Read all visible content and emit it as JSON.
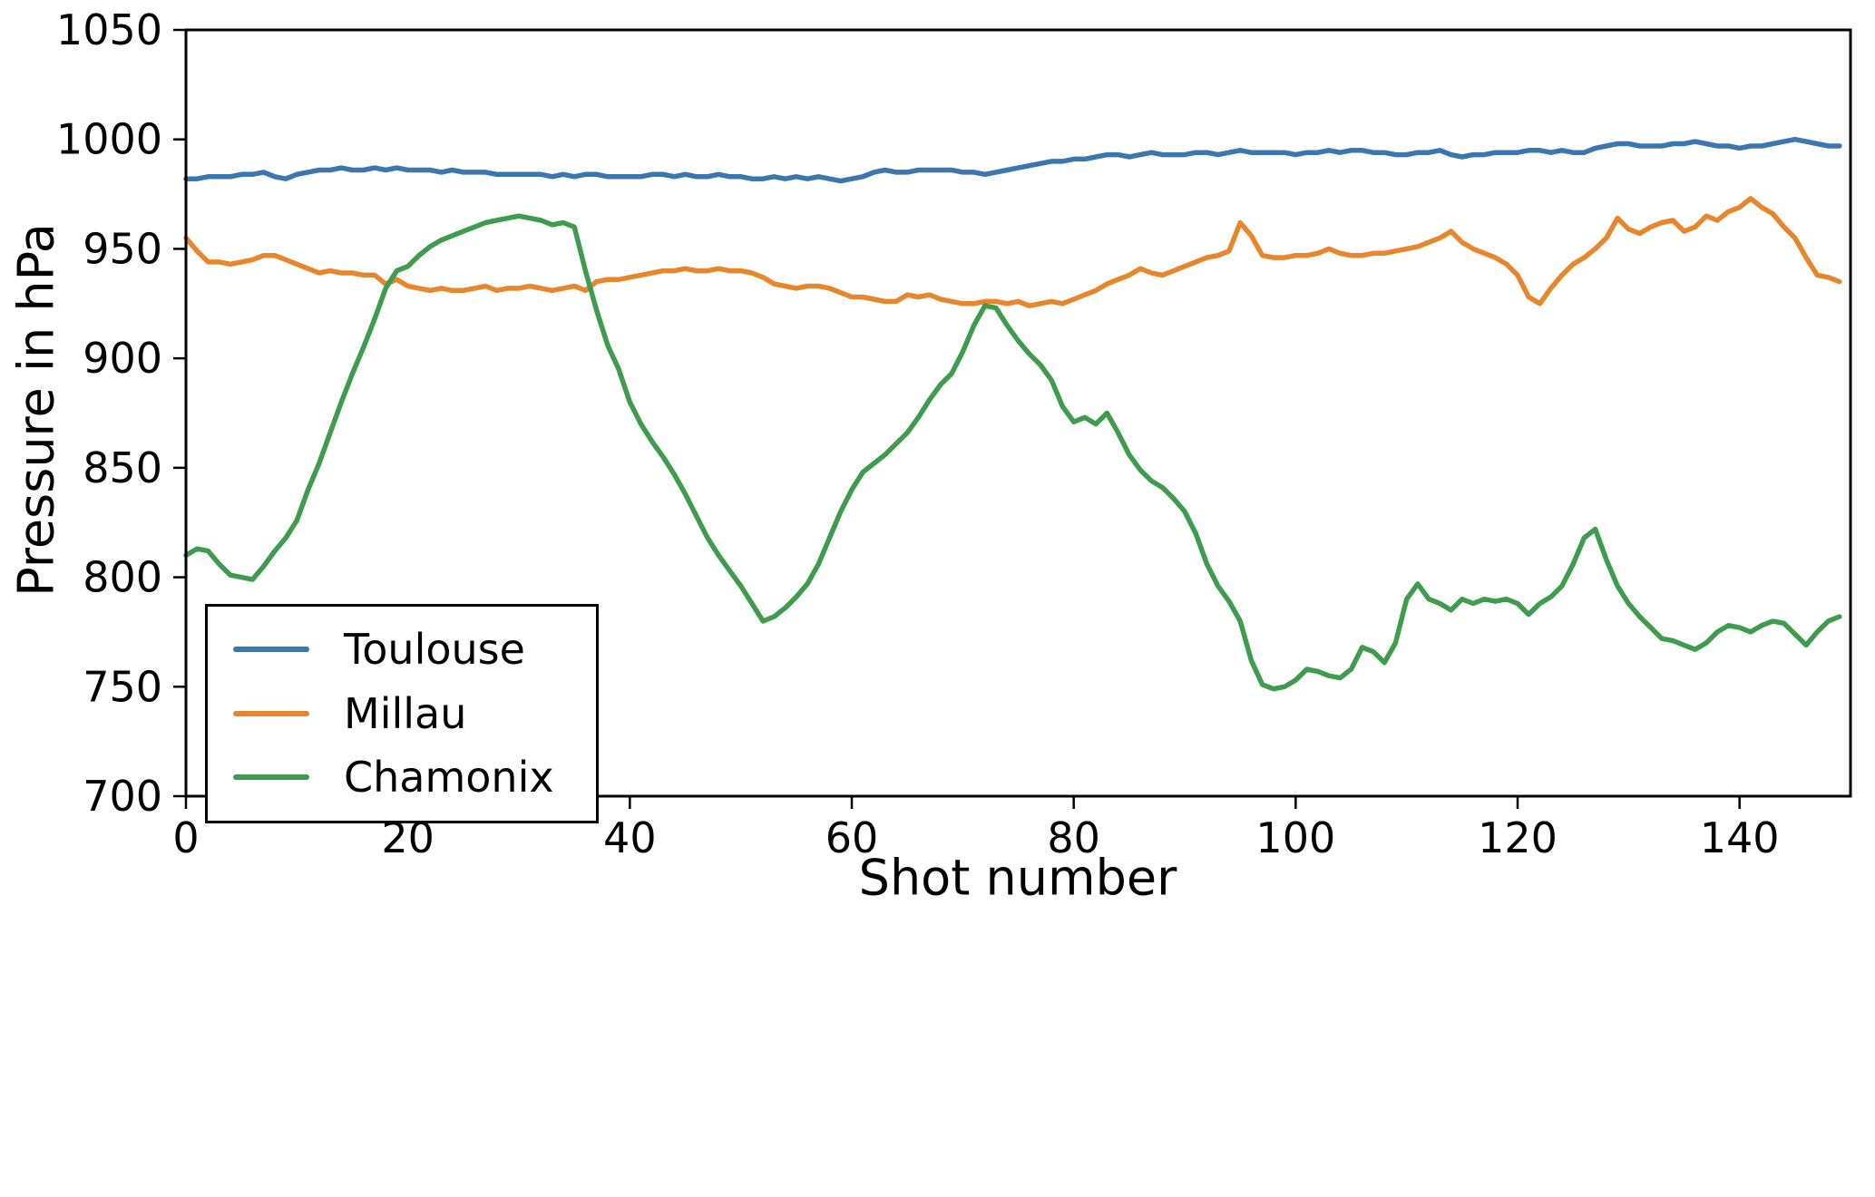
{
  "figure": {
    "background": "#ffffff",
    "axis_color": "#000000",
    "tick_label_color": "#000000"
  },
  "chart_data": {
    "type": "line",
    "title": "",
    "xlabel": "Shot number",
    "ylabel": "Pressure in hPa",
    "xlim": [
      0,
      150
    ],
    "ylim": [
      700,
      1050
    ],
    "xticks": [
      0,
      20,
      40,
      60,
      80,
      100,
      120,
      140
    ],
    "yticks": [
      700,
      750,
      800,
      850,
      900,
      950,
      1000,
      1050
    ],
    "grid": false,
    "legend_position": "lower left",
    "x_start": 0,
    "x_step": 1,
    "series": [
      {
        "name": "Toulouse",
        "color": "#3a76b0",
        "values": [
          982,
          982,
          983,
          983,
          983,
          984,
          984,
          985,
          983,
          982,
          984,
          985,
          986,
          986,
          987,
          986,
          986,
          987,
          986,
          987,
          986,
          986,
          986,
          985,
          986,
          985,
          985,
          985,
          984,
          984,
          984,
          984,
          984,
          983,
          984,
          983,
          984,
          984,
          983,
          983,
          983,
          983,
          984,
          984,
          983,
          984,
          983,
          983,
          984,
          983,
          983,
          982,
          982,
          983,
          982,
          983,
          982,
          983,
          982,
          981,
          982,
          983,
          985,
          986,
          985,
          985,
          986,
          986,
          986,
          986,
          985,
          985,
          984,
          985,
          986,
          987,
          988,
          989,
          990,
          990,
          991,
          991,
          992,
          993,
          993,
          992,
          993,
          994,
          993,
          993,
          993,
          994,
          994,
          993,
          994,
          995,
          994,
          994,
          994,
          994,
          993,
          994,
          994,
          995,
          994,
          995,
          995,
          994,
          994,
          993,
          993,
          994,
          994,
          995,
          993,
          992,
          993,
          993,
          994,
          994,
          994,
          995,
          995,
          994,
          995,
          994,
          994,
          996,
          997,
          998,
          998,
          997,
          997,
          997,
          998,
          998,
          999,
          998,
          997,
          997,
          996,
          997,
          997,
          998,
          999,
          1000,
          999,
          998,
          997,
          997
        ]
      },
      {
        "name": "Millau",
        "color": "#e8862c",
        "values": [
          955,
          949,
          944,
          944,
          943,
          944,
          945,
          947,
          947,
          945,
          943,
          941,
          939,
          940,
          939,
          939,
          938,
          938,
          934,
          936,
          933,
          932,
          931,
          932,
          931,
          931,
          932,
          933,
          931,
          932,
          932,
          933,
          932,
          931,
          932,
          933,
          931,
          935,
          936,
          936,
          937,
          938,
          939,
          940,
          940,
          941,
          940,
          940,
          941,
          940,
          940,
          939,
          937,
          934,
          933,
          932,
          933,
          933,
          932,
          930,
          928,
          928,
          927,
          926,
          926,
          929,
          928,
          929,
          927,
          926,
          925,
          925,
          926,
          926,
          925,
          926,
          924,
          925,
          926,
          925,
          927,
          929,
          931,
          934,
          936,
          938,
          941,
          939,
          938,
          940,
          942,
          944,
          946,
          947,
          949,
          962,
          956,
          947,
          946,
          946,
          947,
          947,
          948,
          950,
          948,
          947,
          947,
          948,
          948,
          949,
          950,
          951,
          953,
          955,
          958,
          953,
          950,
          948,
          946,
          943,
          938,
          928,
          925,
          932,
          938,
          943,
          946,
          950,
          955,
          964,
          959,
          957,
          960,
          962,
          963,
          958,
          960,
          965,
          963,
          967,
          969,
          973,
          969,
          966,
          960,
          955,
          946,
          938,
          937,
          935
        ]
      },
      {
        "name": "Chamonix",
        "color": "#3f9c4f",
        "values": [
          810,
          813,
          812,
          806,
          801,
          800,
          799,
          805,
          812,
          818,
          826,
          840,
          852,
          866,
          880,
          893,
          905,
          918,
          932,
          940,
          942,
          947,
          951,
          954,
          956,
          958,
          960,
          962,
          963,
          964,
          965,
          964,
          963,
          961,
          962,
          960,
          940,
          922,
          906,
          895,
          880,
          870,
          862,
          855,
          847,
          838,
          828,
          818,
          810,
          803,
          796,
          788,
          780,
          782,
          786,
          791,
          797,
          806,
          818,
          830,
          840,
          848,
          852,
          856,
          861,
          866,
          873,
          881,
          888,
          893,
          903,
          915,
          924,
          923,
          915,
          908,
          902,
          897,
          890,
          878,
          871,
          873,
          870,
          875,
          866,
          856,
          849,
          844,
          841,
          836,
          830,
          820,
          806,
          796,
          789,
          780,
          762,
          751,
          749,
          750,
          753,
          758,
          757,
          755,
          754,
          758,
          768,
          766,
          761,
          770,
          790,
          797,
          790,
          788,
          785,
          790,
          788,
          790,
          789,
          790,
          788,
          783,
          788,
          791,
          796,
          806,
          818,
          822,
          808,
          796,
          788,
          782,
          777,
          772,
          771,
          769,
          767,
          770,
          775,
          778,
          777,
          775,
          778,
          780,
          779,
          774,
          769,
          775,
          780,
          782
        ]
      }
    ]
  }
}
